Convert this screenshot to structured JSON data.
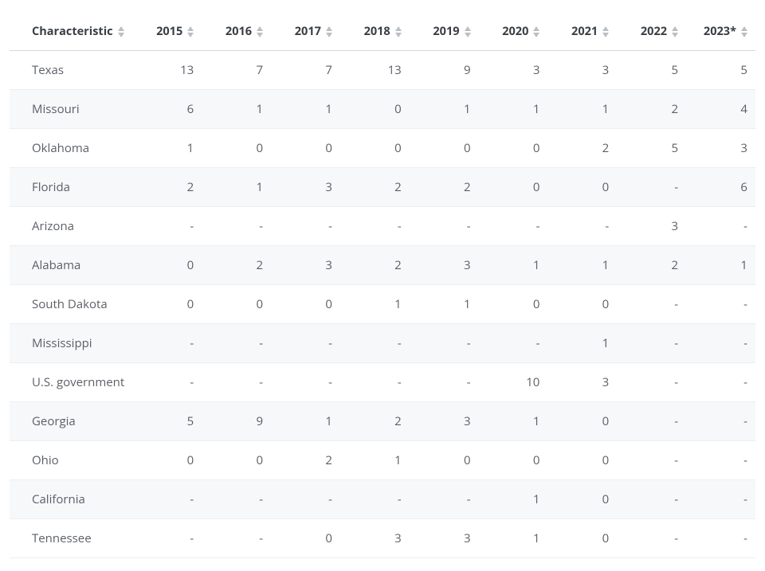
{
  "table": {
    "type": "table",
    "background_color": "#ffffff",
    "row_stripe_colors": [
      "#ffffff",
      "#f6f8fa"
    ],
    "border_color": "#eceef0",
    "header_border_color": "#d6d9dd",
    "text_color": "#5a5f66",
    "header_text_color": "#3a3f44",
    "sort_icon_color": "#b9bfc6",
    "font_size_pt": 11,
    "header_font_weight": 700,
    "columns": [
      {
        "key": "characteristic",
        "label": "Characteristic",
        "align": "left",
        "sortable": true,
        "width_pct": 16.5
      },
      {
        "key": "y2015",
        "label": "2015",
        "align": "right",
        "sortable": true,
        "width_pct": 9.28
      },
      {
        "key": "y2016",
        "label": "2016",
        "align": "right",
        "sortable": true,
        "width_pct": 9.28
      },
      {
        "key": "y2017",
        "label": "2017",
        "align": "right",
        "sortable": true,
        "width_pct": 9.28
      },
      {
        "key": "y2018",
        "label": "2018",
        "align": "right",
        "sortable": true,
        "width_pct": 9.28
      },
      {
        "key": "y2019",
        "label": "2019",
        "align": "right",
        "sortable": true,
        "width_pct": 9.28
      },
      {
        "key": "y2020",
        "label": "2020",
        "align": "right",
        "sortable": true,
        "width_pct": 9.28
      },
      {
        "key": "y2021",
        "label": "2021",
        "align": "right",
        "sortable": true,
        "width_pct": 9.28
      },
      {
        "key": "y2022",
        "label": "2022",
        "align": "right",
        "sortable": true,
        "width_pct": 9.28
      },
      {
        "key": "y2023",
        "label": "2023*",
        "align": "right",
        "sortable": true,
        "width_pct": 9.28
      }
    ],
    "rows": [
      {
        "characteristic": "Texas",
        "y2015": "13",
        "y2016": "7",
        "y2017": "7",
        "y2018": "13",
        "y2019": "9",
        "y2020": "3",
        "y2021": "3",
        "y2022": "5",
        "y2023": "5"
      },
      {
        "characteristic": "Missouri",
        "y2015": "6",
        "y2016": "1",
        "y2017": "1",
        "y2018": "0",
        "y2019": "1",
        "y2020": "1",
        "y2021": "1",
        "y2022": "2",
        "y2023": "4"
      },
      {
        "characteristic": "Oklahoma",
        "y2015": "1",
        "y2016": "0",
        "y2017": "0",
        "y2018": "0",
        "y2019": "0",
        "y2020": "0",
        "y2021": "2",
        "y2022": "5",
        "y2023": "3"
      },
      {
        "characteristic": "Florida",
        "y2015": "2",
        "y2016": "1",
        "y2017": "3",
        "y2018": "2",
        "y2019": "2",
        "y2020": "0",
        "y2021": "0",
        "y2022": "-",
        "y2023": "6"
      },
      {
        "characteristic": "Arizona",
        "y2015": "-",
        "y2016": "-",
        "y2017": "-",
        "y2018": "-",
        "y2019": "-",
        "y2020": "-",
        "y2021": "-",
        "y2022": "3",
        "y2023": "-"
      },
      {
        "characteristic": "Alabama",
        "y2015": "0",
        "y2016": "2",
        "y2017": "3",
        "y2018": "2",
        "y2019": "3",
        "y2020": "1",
        "y2021": "1",
        "y2022": "2",
        "y2023": "1"
      },
      {
        "characteristic": "South Dakota",
        "y2015": "0",
        "y2016": "0",
        "y2017": "0",
        "y2018": "1",
        "y2019": "1",
        "y2020": "0",
        "y2021": "0",
        "y2022": "-",
        "y2023": "-"
      },
      {
        "characteristic": "Mississippi",
        "y2015": "-",
        "y2016": "-",
        "y2017": "-",
        "y2018": "-",
        "y2019": "-",
        "y2020": "-",
        "y2021": "1",
        "y2022": "-",
        "y2023": "-"
      },
      {
        "characteristic": "U.S. government",
        "y2015": "-",
        "y2016": "-",
        "y2017": "-",
        "y2018": "-",
        "y2019": "-",
        "y2020": "10",
        "y2021": "3",
        "y2022": "-",
        "y2023": "-"
      },
      {
        "characteristic": "Georgia",
        "y2015": "5",
        "y2016": "9",
        "y2017": "1",
        "y2018": "2",
        "y2019": "3",
        "y2020": "1",
        "y2021": "0",
        "y2022": "-",
        "y2023": "-"
      },
      {
        "characteristic": "Ohio",
        "y2015": "0",
        "y2016": "0",
        "y2017": "2",
        "y2018": "1",
        "y2019": "0",
        "y2020": "0",
        "y2021": "0",
        "y2022": "-",
        "y2023": "-"
      },
      {
        "characteristic": "California",
        "y2015": "-",
        "y2016": "-",
        "y2017": "-",
        "y2018": "-",
        "y2019": "-",
        "y2020": "1",
        "y2021": "0",
        "y2022": "-",
        "y2023": "-"
      },
      {
        "characteristic": "Tennessee",
        "y2015": "-",
        "y2016": "-",
        "y2017": "0",
        "y2018": "3",
        "y2019": "3",
        "y2020": "1",
        "y2021": "0",
        "y2022": "-",
        "y2023": "-"
      }
    ]
  }
}
